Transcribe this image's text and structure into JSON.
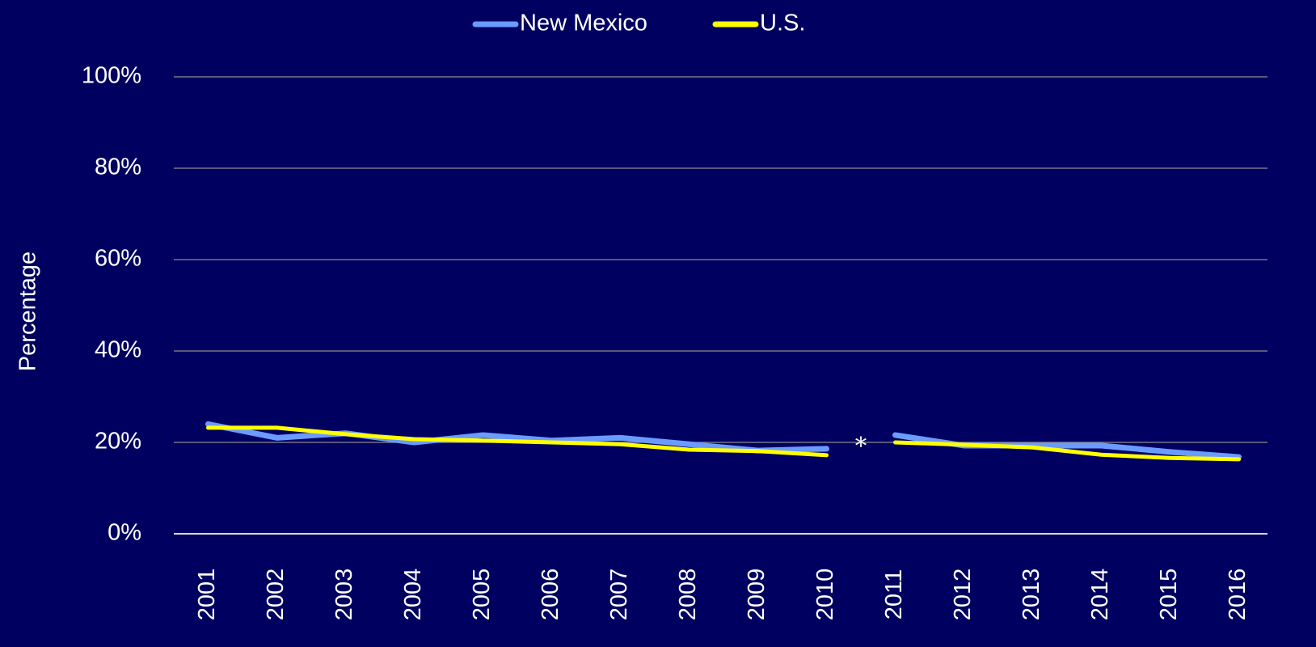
{
  "chart_data": {
    "type": "line",
    "y_label": "Percentage",
    "categories": [
      "2001",
      "2002",
      "2003",
      "2004",
      "2005",
      "2006",
      "2007",
      "2008",
      "2009",
      "2010",
      "2011",
      "2012",
      "2013",
      "2014",
      "2015",
      "2016"
    ],
    "series": [
      {
        "name": "New Mexico",
        "color": "#6a9bff",
        "values": [
          24,
          21,
          22,
          20,
          21.6,
          20.4,
          21,
          19.6,
          18.2,
          18.6,
          21.6,
          19.3,
          19.3,
          19.3,
          17.9,
          16.8
        ]
      },
      {
        "name": "U.S.",
        "color": "#ffff00",
        "values": [
          23.2,
          23.2,
          21.8,
          20.7,
          20.4,
          20,
          19.6,
          18.4,
          18.1,
          17.2,
          20,
          19.5,
          18.9,
          17.3,
          16.6,
          16.3
        ]
      }
    ],
    "break_after": "2010",
    "break_marker": "*",
    "ylim": [
      0,
      100
    ],
    "yticks": [
      {
        "value": 0,
        "label": "0%"
      },
      {
        "value": 20,
        "label": "20%"
      },
      {
        "value": 40,
        "label": "40%"
      },
      {
        "value": 60,
        "label": "60%"
      },
      {
        "value": 80,
        "label": "80%"
      },
      {
        "value": 100,
        "label": "100%"
      }
    ],
    "grid": true,
    "legend": "top"
  }
}
